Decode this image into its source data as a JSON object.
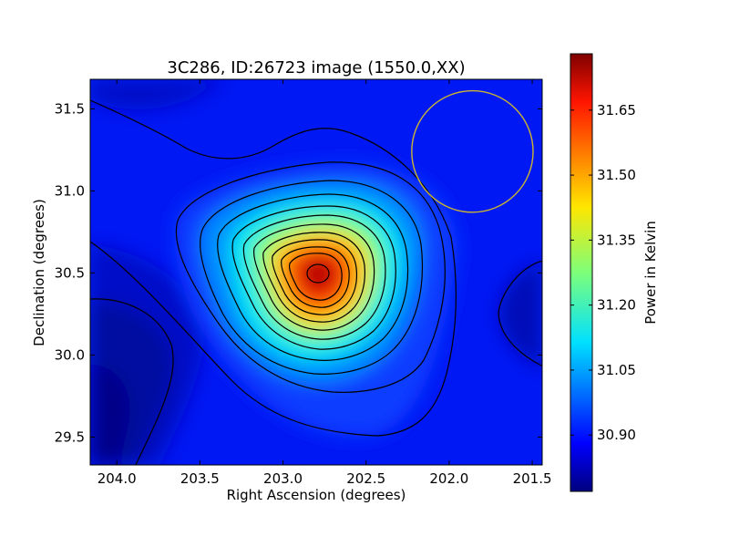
{
  "chart_data": {
    "type": "heatmap",
    "title": "3C286, ID:26723 image (1550.0,XX)",
    "xlabel": "Right Ascension (degrees)",
    "ylabel": "Declination (degrees)",
    "colorbar_label": "Power in Kelvin",
    "colormap": "jet",
    "xlim": [
      204.16,
      201.44
    ],
    "ylim": [
      29.33,
      31.68
    ],
    "clim": [
      30.77,
      31.78
    ],
    "x_ticks": [
      204.0,
      203.5,
      203.0,
      202.5,
      202.0,
      201.5
    ],
    "x_tick_labels": [
      "204.0",
      "203.5",
      "203.0",
      "202.5",
      "202.0",
      "201.5"
    ],
    "y_ticks": [
      29.5,
      30.0,
      30.5,
      31.0,
      31.5
    ],
    "y_tick_labels": [
      "29.5",
      "30.0",
      "30.5",
      "31.0",
      "31.5"
    ],
    "colorbar_ticks": [
      30.9,
      31.05,
      31.2,
      31.35,
      31.5,
      31.65
    ],
    "colorbar_tick_labels": [
      "30.90",
      "31.05",
      "31.20",
      "31.35",
      "31.50",
      "31.65"
    ],
    "peak": {
      "ra": 202.78,
      "dec": 30.51,
      "value": 31.76
    },
    "contour_levels": [
      30.85,
      30.9,
      30.97,
      31.05,
      31.13,
      31.21,
      31.29,
      31.37,
      31.45,
      31.53,
      31.61,
      31.69,
      31.75
    ],
    "beam_circle": {
      "ra": 201.86,
      "dec": 31.24,
      "radius_deg": 0.37,
      "color": "#c8b432"
    },
    "grid": false
  }
}
